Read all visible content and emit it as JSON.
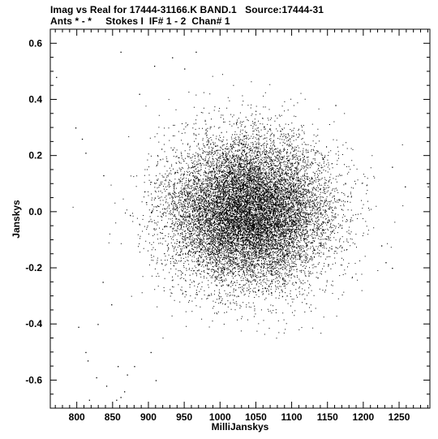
{
  "chart_data": {
    "type": "scatter",
    "title": "Imag vs Real for 17444-31166.K BAND.1   Source:17444-31",
    "subtitle": "Ants * - *     Stokes I  IF# 1 - 2  Chan# 1",
    "xlabel": "MilliJanskys",
    "ylabel": "Janskys",
    "xlim": [
      763,
      1293
    ],
    "ylim": [
      -0.7,
      0.65
    ],
    "xticks": [
      800,
      850,
      900,
      950,
      1000,
      1050,
      1100,
      1150,
      1200,
      1250
    ],
    "yticks": [
      -0.6,
      -0.4,
      -0.2,
      0.0,
      0.2,
      0.4,
      0.6
    ],
    "ytick_labels": [
      "-0.6",
      "-0.4",
      "-0.2",
      "0.0",
      "0.2",
      "0.4",
      "0.6"
    ],
    "grid": false,
    "point_color": "#000000",
    "cluster": {
      "x_center": 1040,
      "y_center": 0.0,
      "x_spread": 55,
      "y_spread": 0.13,
      "n_points": 14000
    },
    "outlier_points": [
      {
        "x": 771,
        "y": 0.48
      },
      {
        "x": 861,
        "y": 0.57
      },
      {
        "x": 933,
        "y": 0.55
      },
      {
        "x": 950,
        "y": 0.51
      },
      {
        "x": 966,
        "y": 0.57
      },
      {
        "x": 908,
        "y": 0.52
      },
      {
        "x": 887,
        "y": 0.42
      },
      {
        "x": 798,
        "y": 0.3
      },
      {
        "x": 807,
        "y": 0.26
      },
      {
        "x": 812,
        "y": 0.21
      },
      {
        "x": 837,
        "y": 0.13
      },
      {
        "x": 1258,
        "y": 0.09
      },
      {
        "x": 1290,
        "y": 0.09
      },
      {
        "x": 1240,
        "y": 0.16
      },
      {
        "x": 1225,
        "y": -0.12
      },
      {
        "x": 1231,
        "y": -0.18
      },
      {
        "x": 1240,
        "y": -0.2
      },
      {
        "x": 1161,
        "y": 0.38
      },
      {
        "x": 802,
        "y": -0.41
      },
      {
        "x": 812,
        "y": -0.5
      },
      {
        "x": 815,
        "y": -0.53
      },
      {
        "x": 827,
        "y": -0.59
      },
      {
        "x": 829,
        "y": -0.4
      },
      {
        "x": 817,
        "y": -0.67
      },
      {
        "x": 841,
        "y": -0.62
      },
      {
        "x": 855,
        "y": -0.67
      },
      {
        "x": 861,
        "y": -0.66
      },
      {
        "x": 866,
        "y": -0.64
      },
      {
        "x": 870,
        "y": -0.58
      },
      {
        "x": 880,
        "y": -0.55
      },
      {
        "x": 903,
        "y": -0.5
      },
      {
        "x": 910,
        "y": -0.6
      },
      {
        "x": 857,
        "y": -0.55
      },
      {
        "x": 836,
        "y": -0.25
      },
      {
        "x": 848,
        "y": -0.33
      }
    ]
  }
}
